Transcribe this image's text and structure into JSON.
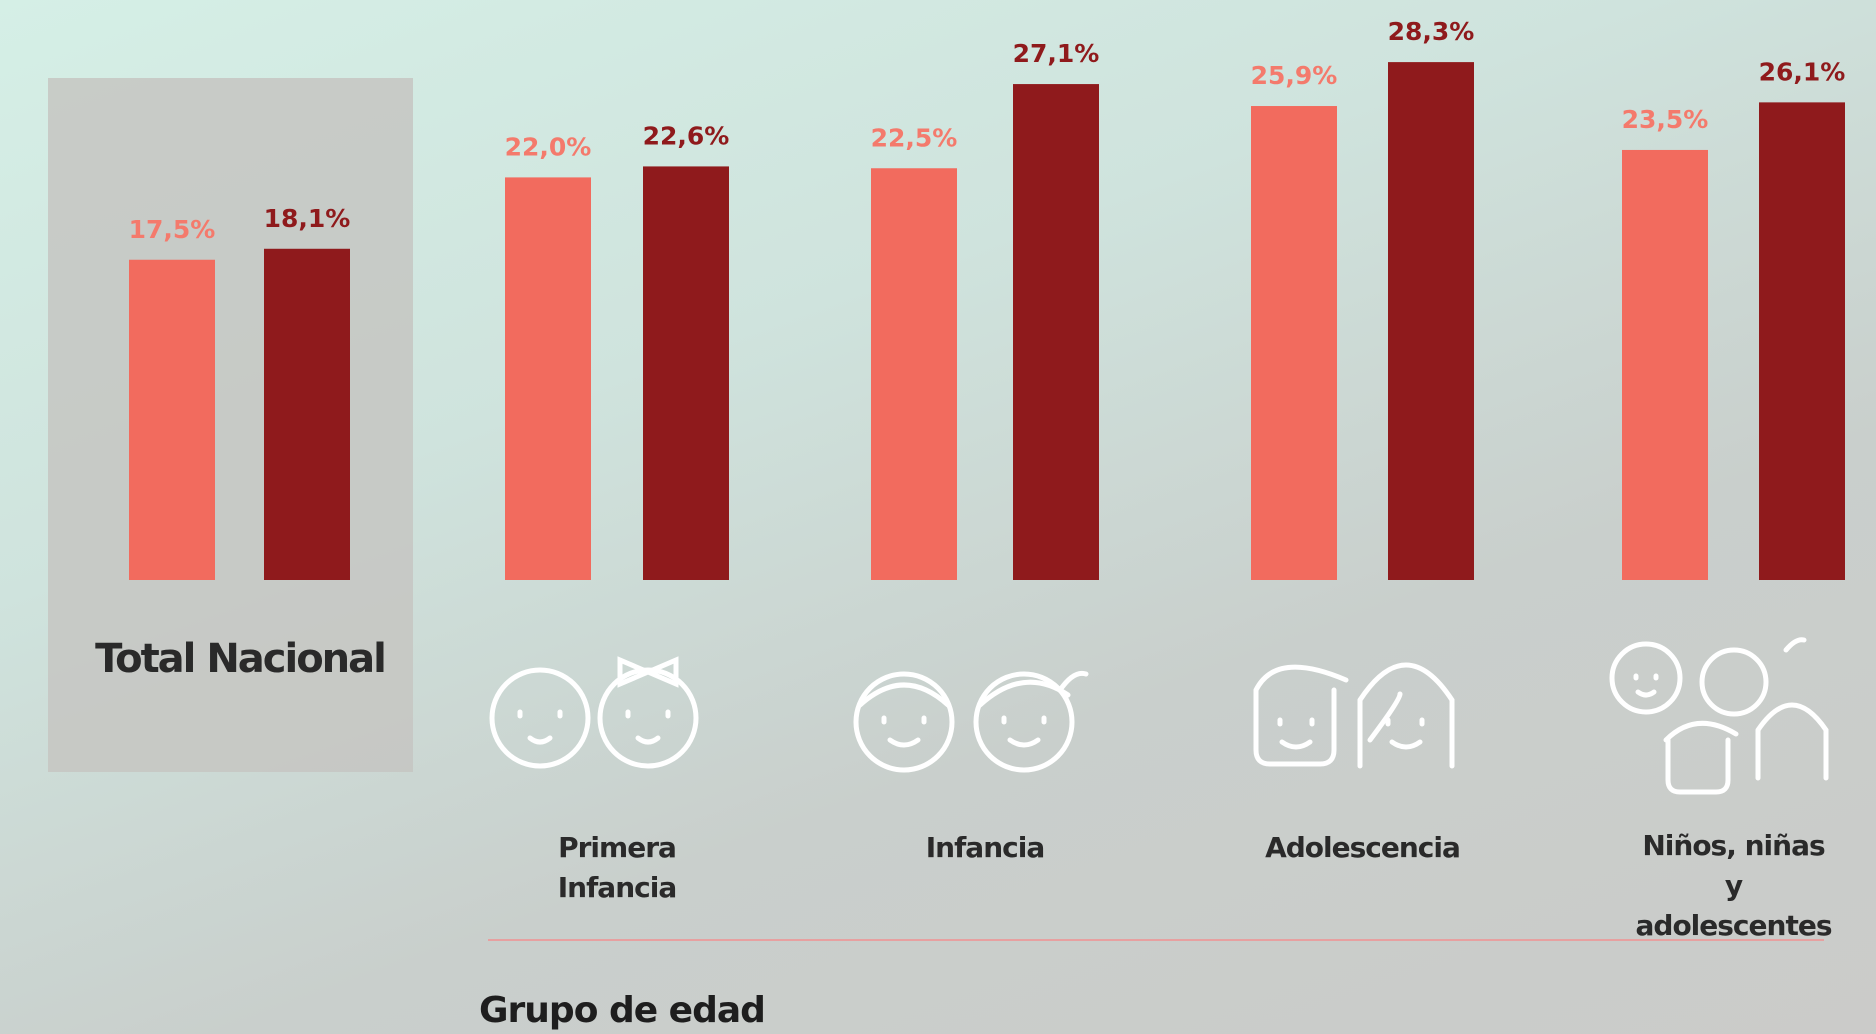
{
  "chart_data": {
    "type": "bar",
    "categories": [
      "Total Nacional",
      "Primera Infancia",
      "Infancia",
      "Adolescencia",
      "Niños, niñas y adolescentes"
    ],
    "series": [
      {
        "color": "#f26b5e",
        "label_color": "#f47a6c",
        "values": [
          17.5,
          22.0,
          22.5,
          25.9,
          23.5
        ],
        "value_labels": [
          "17,5%",
          "22,0%",
          "22,5%",
          "25,9%",
          "23,5%"
        ]
      },
      {
        "color": "#8f1a1c",
        "label_color": "#8f1a1c",
        "values": [
          18.1,
          22.6,
          27.1,
          28.3,
          26.1
        ],
        "value_labels": [
          "18,1%",
          "22,6%",
          "27,1%",
          "28,3%",
          "26,1%"
        ]
      }
    ],
    "x_label": "Grupo de edad"
  }
}
